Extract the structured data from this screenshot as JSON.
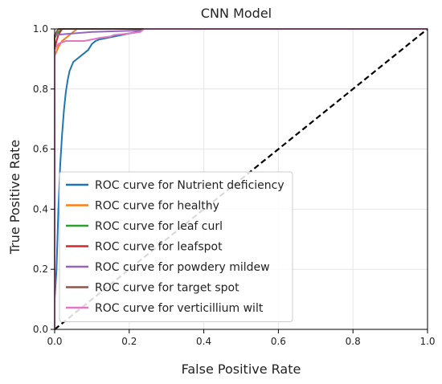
{
  "chart_data": {
    "type": "line",
    "title": "CNN Model",
    "xlabel": "False Positive Rate",
    "ylabel": "True Positive Rate",
    "xlim": [
      0.0,
      1.0
    ],
    "ylim": [
      0.0,
      1.0
    ],
    "x_ticks": [
      "0.0",
      "0.2",
      "0.4",
      "0.6",
      "0.8",
      "1.0"
    ],
    "y_ticks": [
      "0.0",
      "0.2",
      "0.4",
      "0.6",
      "0.8",
      "1.0"
    ],
    "grid": true,
    "legend_position": "lower-left",
    "series": [
      {
        "name": "ROC curve for Nutrient deficiency",
        "color": "#1f77b4",
        "points": [
          [
            0,
            0
          ],
          [
            0,
            0.1
          ],
          [
            0.005,
            0.2
          ],
          [
            0.01,
            0.4
          ],
          [
            0.015,
            0.55
          ],
          [
            0.02,
            0.65
          ],
          [
            0.025,
            0.73
          ],
          [
            0.03,
            0.79
          ],
          [
            0.035,
            0.83
          ],
          [
            0.04,
            0.86
          ],
          [
            0.05,
            0.89
          ],
          [
            0.06,
            0.9
          ],
          [
            0.07,
            0.91
          ],
          [
            0.08,
            0.92
          ],
          [
            0.09,
            0.93
          ],
          [
            0.1,
            0.95
          ],
          [
            0.11,
            0.96
          ],
          [
            0.12,
            0.965
          ],
          [
            0.14,
            0.97
          ],
          [
            0.16,
            0.975
          ],
          [
            0.18,
            0.98
          ],
          [
            0.2,
            0.985
          ],
          [
            0.22,
            0.99
          ],
          [
            0.24,
            1.0
          ],
          [
            1.0,
            1.0
          ]
        ]
      },
      {
        "name": "ROC curve for healthy",
        "color": "#ff7f0e",
        "points": [
          [
            0,
            0
          ],
          [
            0,
            0.91
          ],
          [
            0.01,
            0.94
          ],
          [
            0.02,
            0.96
          ],
          [
            0.03,
            0.97
          ],
          [
            0.04,
            0.98
          ],
          [
            0.05,
            0.99
          ],
          [
            0.06,
            1.0
          ],
          [
            1.0,
            1.0
          ]
        ]
      },
      {
        "name": "ROC curve for leaf curl",
        "color": "#2ca02c",
        "points": [
          [
            0,
            0
          ],
          [
            0,
            0.97
          ],
          [
            0.01,
            0.99
          ],
          [
            0.02,
            1.0
          ],
          [
            1.0,
            1.0
          ]
        ]
      },
      {
        "name": "ROC curve for leafspot",
        "color": "#d62728",
        "points": [
          [
            0,
            0
          ],
          [
            0,
            0.93
          ],
          [
            0.005,
            0.96
          ],
          [
            0.01,
            0.98
          ],
          [
            0.015,
            0.99
          ],
          [
            0.02,
            1.0
          ],
          [
            1.0,
            1.0
          ]
        ]
      },
      {
        "name": "ROC curve for powdery mildew",
        "color": "#9467bd",
        "points": [
          [
            0,
            0
          ],
          [
            0,
            0.98
          ],
          [
            0.05,
            0.985
          ],
          [
            0.1,
            0.99
          ],
          [
            0.23,
            0.995
          ],
          [
            0.24,
            1.0
          ],
          [
            1.0,
            1.0
          ]
        ]
      },
      {
        "name": "ROC curve for target spot",
        "color": "#8c564b",
        "points": [
          [
            0,
            0
          ],
          [
            0,
            0.98
          ],
          [
            0.005,
            0.99
          ],
          [
            0.01,
            1.0
          ],
          [
            1.0,
            1.0
          ]
        ]
      },
      {
        "name": "ROC curve for verticillium wilt",
        "color": "#e377c2",
        "points": [
          [
            0,
            0
          ],
          [
            0,
            0.93
          ],
          [
            0.01,
            0.95
          ],
          [
            0.03,
            0.96
          ],
          [
            0.05,
            0.96
          ],
          [
            0.08,
            0.96
          ],
          [
            0.1,
            0.965
          ],
          [
            0.12,
            0.97
          ],
          [
            0.15,
            0.975
          ],
          [
            0.16,
            0.98
          ],
          [
            0.2,
            0.985
          ],
          [
            0.23,
            0.99
          ],
          [
            0.24,
            1.0
          ],
          [
            1.0,
            1.0
          ]
        ]
      }
    ],
    "reference_line": {
      "points": [
        [
          0,
          0
        ],
        [
          1,
          1
        ]
      ],
      "color": "#000000",
      "style": "dashed"
    }
  }
}
